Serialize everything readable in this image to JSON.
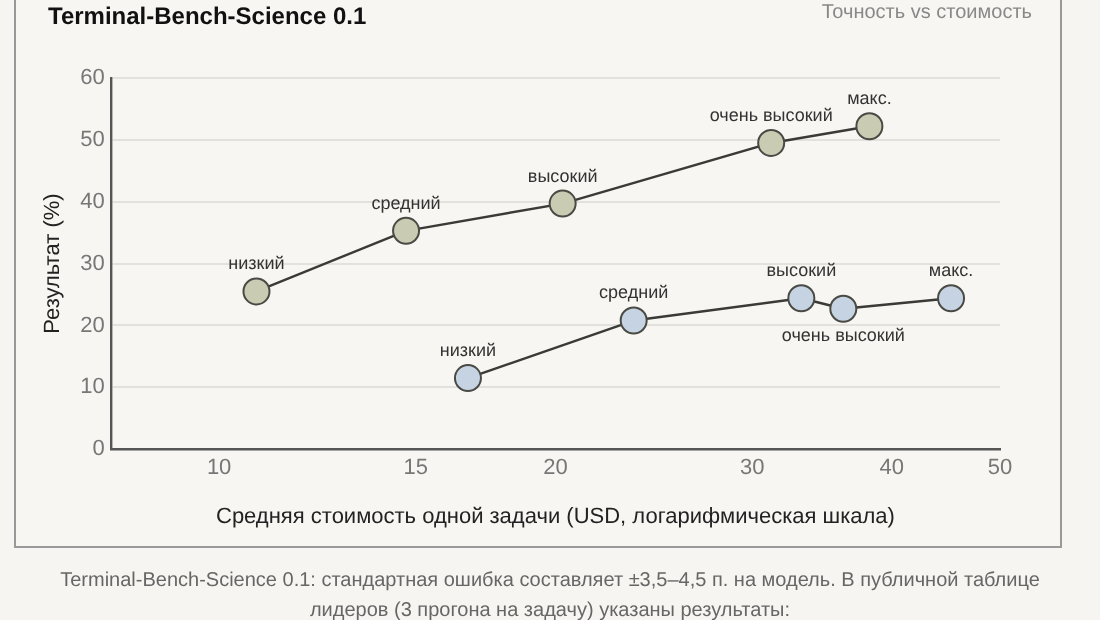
{
  "chart_data": {
    "type": "line",
    "title": "Terminal-Bench-Science 0.1",
    "subtitle": "Точность vs стоимость",
    "xlabel": "Средняя стоимость одной задачи (USD, логарифмическая шкала)",
    "ylabel": "Результат (%)",
    "log": "x",
    "xlim": [
      8,
      50
    ],
    "xticks": [
      10,
      15,
      20,
      30,
      40,
      50
    ],
    "ylim": [
      0,
      60
    ],
    "yticks": [
      0,
      10,
      20,
      30,
      40,
      50,
      60
    ],
    "grid": "y",
    "legend": false,
    "marker": "circle",
    "line_style": "solid",
    "series": [
      {
        "color": "#c9ccb3",
        "x": [
          10.8,
          14.7,
          20.3,
          31.2,
          38.2
        ],
        "values": [
          25.5,
          35.3,
          39.7,
          49.5,
          52.2
        ]
      },
      {
        "color": "#c6d3e3",
        "x": [
          16.7,
          23.5,
          33.2,
          36.2,
          45.2
        ],
        "values": [
          11.5,
          20.8,
          24.4,
          22.7,
          24.4
        ]
      }
    ],
    "annotations": [
      {
        "text": "низкий",
        "x": 10.8,
        "y": 25.5
      },
      {
        "text": "средний",
        "x": 14.7,
        "y": 35.3
      },
      {
        "text": "высокий",
        "x": 20.3,
        "y": 39.7
      },
      {
        "text": "очень высокий",
        "x": 31.2,
        "y": 49.5
      },
      {
        "text": "макс.",
        "x": 38.2,
        "y": 52.2
      },
      {
        "text": "низкий",
        "x": 16.7,
        "y": 11.5
      },
      {
        "text": "средний",
        "x": 23.5,
        "y": 20.8
      },
      {
        "text": "высокий",
        "x": 33.2,
        "y": 24.4
      },
      {
        "text": "очень высокий",
        "x": 36.2,
        "y": 22.7
      },
      {
        "text": "макс.",
        "x": 45.2,
        "y": 24.4
      },
      "Terminal-Bench-Science 0.1: стандартная ошибка составляет ±3,5–4,5 п. на модель. В публичной таблице лидеров (3 прогона на задачу) указаны результаты:"
    ]
  }
}
